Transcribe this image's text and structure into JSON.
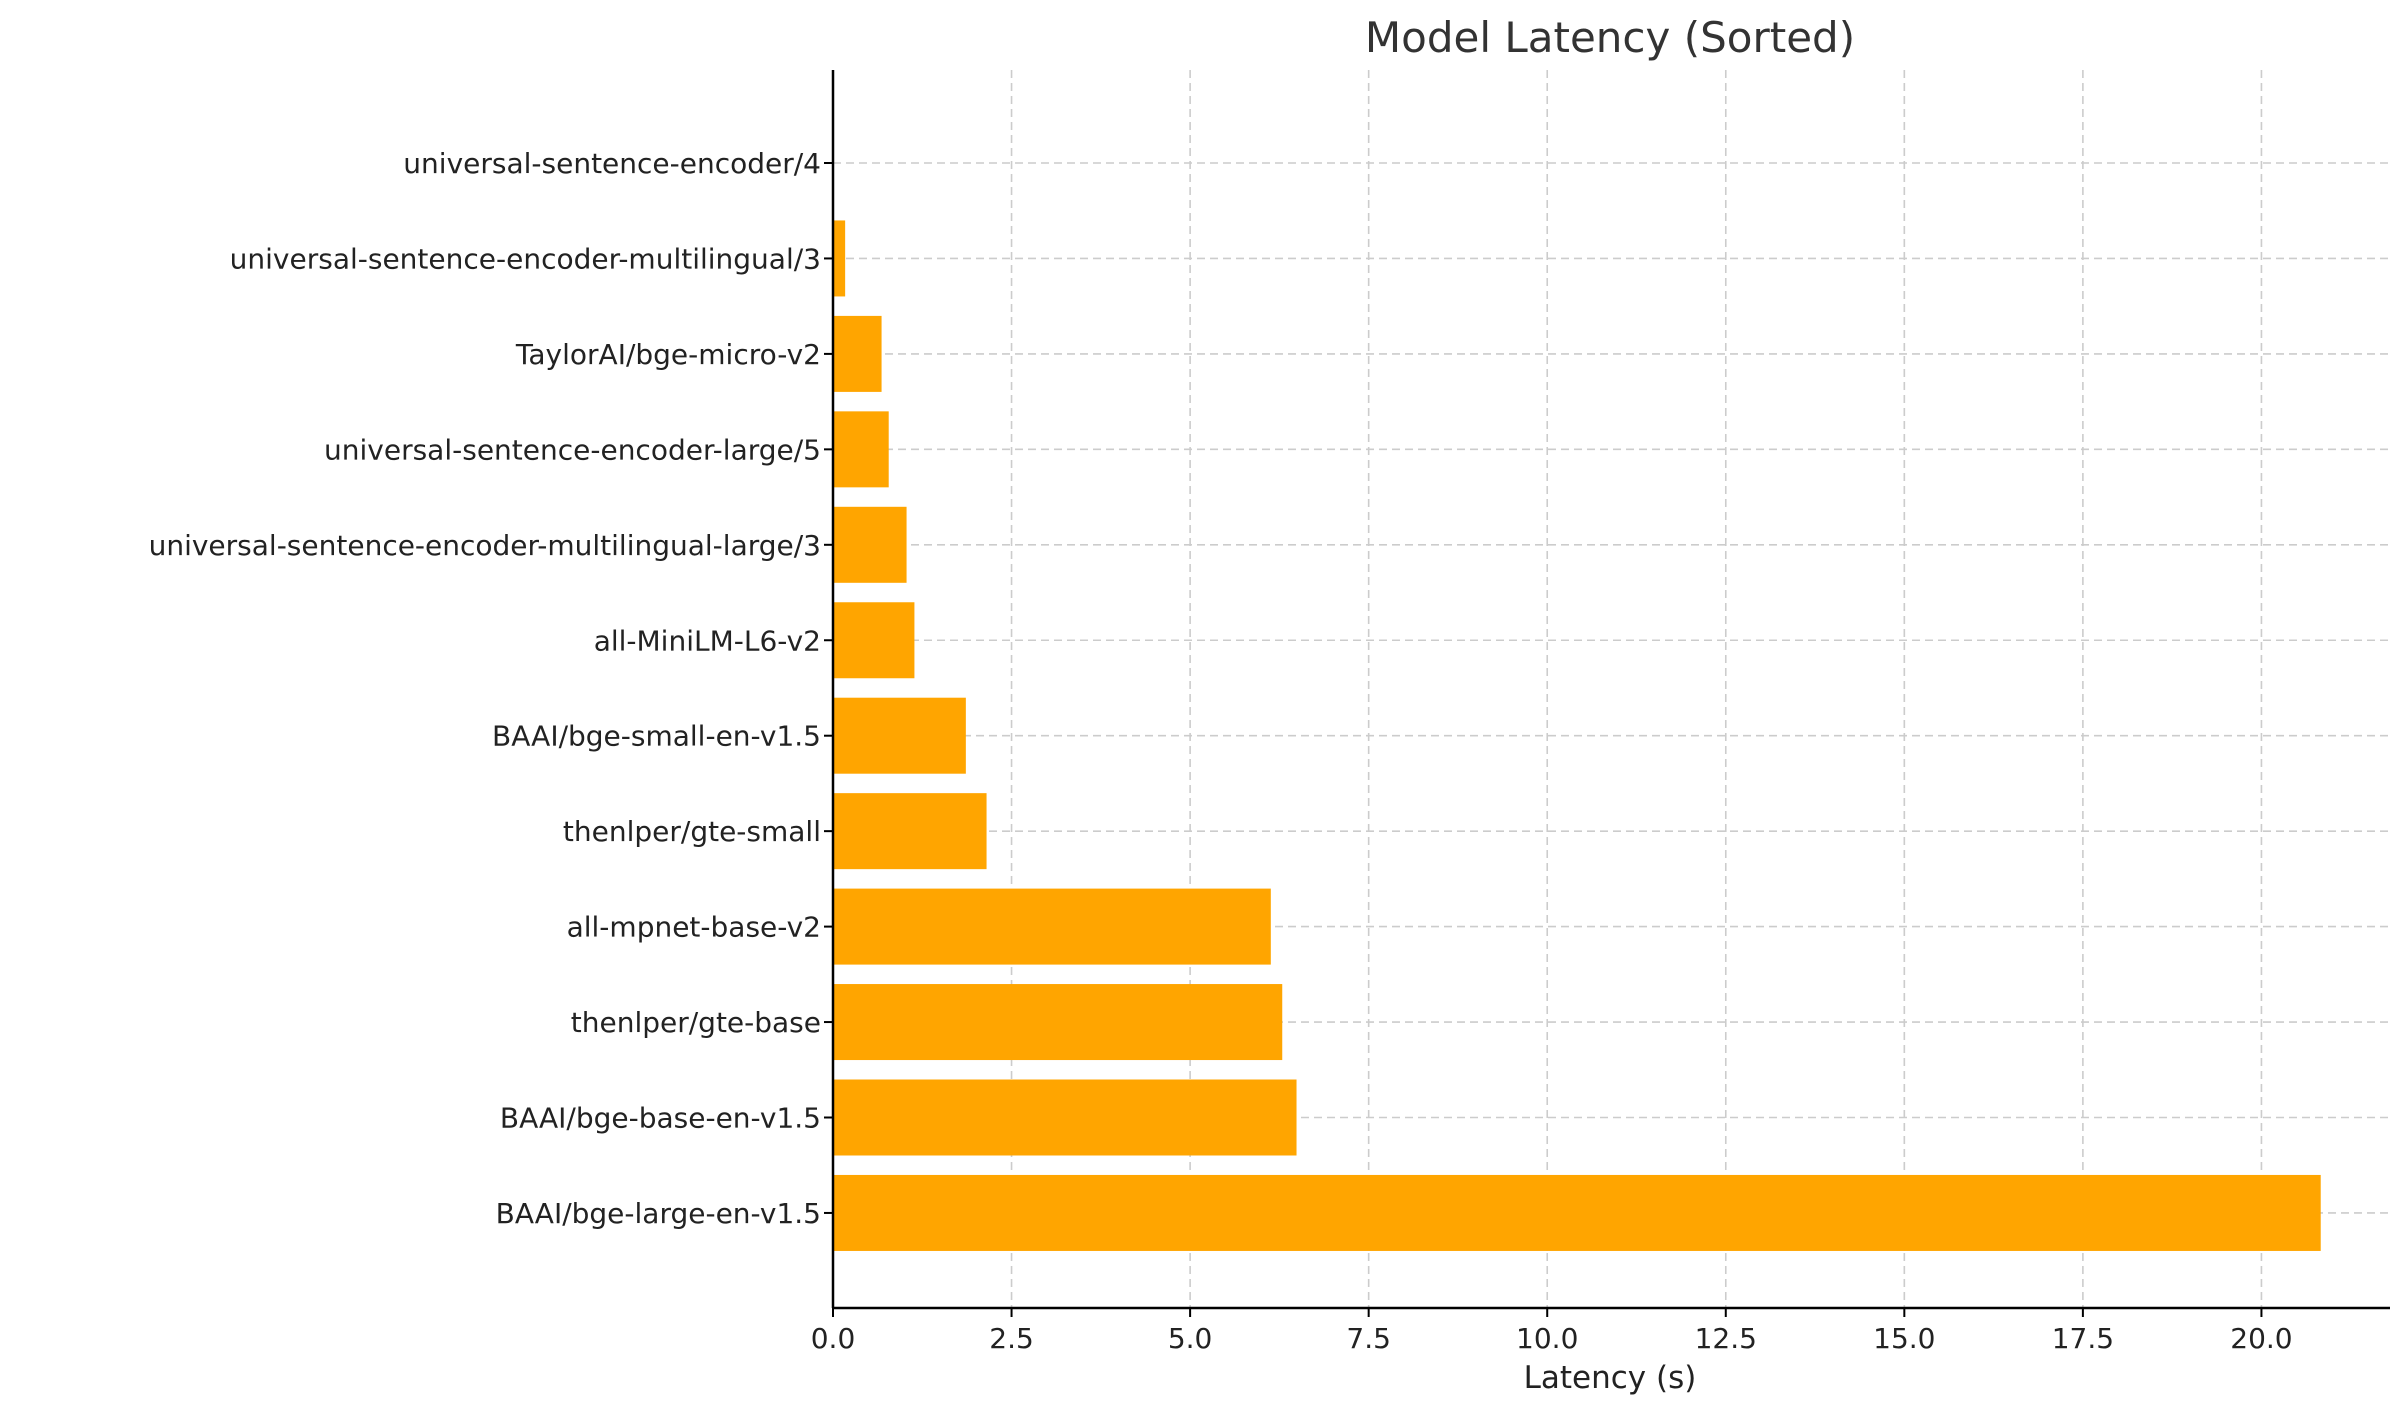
{
  "chart_data": {
    "type": "bar",
    "orientation": "horizontal",
    "title": "Model Latency (Sorted)",
    "xlabel": "Latency (s)",
    "ylabel": "",
    "xlim": [
      0,
      21.8
    ],
    "xticks": [
      "0.0",
      "2.5",
      "5.0",
      "7.5",
      "10.0",
      "12.5",
      "15.0",
      "17.5",
      "20.0"
    ],
    "grid": true,
    "bar_color": "#ffa500",
    "categories": [
      "universal-sentence-encoder/4",
      "universal-sentence-encoder-multilingual/3",
      "TaylorAI/bge-micro-v2",
      "universal-sentence-encoder-large/5",
      "universal-sentence-encoder-multilingual-large/3",
      "all-MiniLM-L6-v2",
      "BAAI/bge-small-en-v1.5",
      "thenlper/gte-small",
      "all-mpnet-base-v2",
      "thenlper/gte-base",
      "BAAI/bge-base-en-v1.5",
      "BAAI/bge-large-en-v1.5"
    ],
    "values": [
      0.0,
      0.17,
      0.68,
      0.78,
      1.03,
      1.14,
      1.86,
      2.15,
      6.13,
      6.29,
      6.49,
      20.83
    ]
  }
}
